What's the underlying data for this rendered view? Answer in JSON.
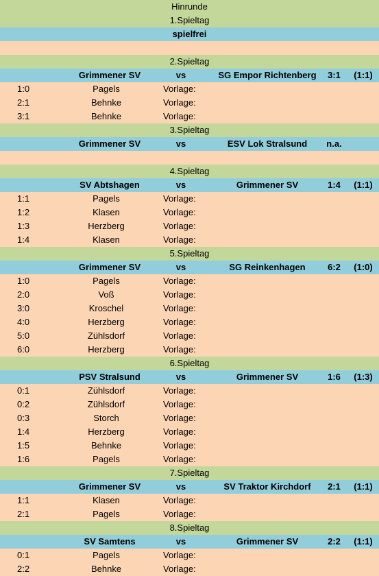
{
  "title": "Hinrunde",
  "rounds": [
    {
      "label": "1.Spieltag",
      "spielfrei": "spielfrei",
      "goals": []
    },
    {
      "label": "2.Spieltag",
      "match": {
        "home": "Grimmener SV",
        "vs": "vs",
        "away": "SG Empor Richtenberg",
        "result": "3:1",
        "half": "(1:1)"
      },
      "goals": [
        {
          "score": "1:0",
          "player": "Pagels",
          "vorlage": "Vorlage:"
        },
        {
          "score": "2:1",
          "player": "Behnke",
          "vorlage": "Vorlage:"
        },
        {
          "score": "3:1",
          "player": "Behnke",
          "vorlage": "Vorlage:"
        }
      ]
    },
    {
      "label": "3.Spieltag",
      "match": {
        "home": "Grimmener SV",
        "vs": "vs",
        "away": "ESV Lok Stralsund",
        "result": "n.a.",
        "half": ""
      },
      "goals": [],
      "empty_row": true
    },
    {
      "label": "4.Spieltag",
      "match": {
        "home": "SV Abtshagen",
        "vs": "vs",
        "away": "Grimmener SV",
        "result": "1:4",
        "half": "(1:1)"
      },
      "goals": [
        {
          "score": "1:1",
          "player": "Pagels",
          "vorlage": "Vorlage:"
        },
        {
          "score": "1:2",
          "player": "Klasen",
          "vorlage": "Vorlage:"
        },
        {
          "score": "1:3",
          "player": "Herzberg",
          "vorlage": "Vorlage:"
        },
        {
          "score": "1:4",
          "player": "Klasen",
          "vorlage": "Vorlage:"
        }
      ]
    },
    {
      "label": "5.Spieltag",
      "match": {
        "home": "Grimmener SV",
        "vs": "vs",
        "away": "SG Reinkenhagen",
        "result": "6:2",
        "half": "(1:0)"
      },
      "goals": [
        {
          "score": "1:0",
          "player": "Pagels",
          "vorlage": "Vorlage:"
        },
        {
          "score": "2:0",
          "player": "Voß",
          "vorlage": "Vorlage:"
        },
        {
          "score": "3:0",
          "player": "Kroschel",
          "vorlage": "Vorlage:"
        },
        {
          "score": "4:0",
          "player": "Herzberg",
          "vorlage": "Vorlage:"
        },
        {
          "score": "5:0",
          "player": "Zühlsdorf",
          "vorlage": "Vorlage:"
        },
        {
          "score": "6:0",
          "player": "Herzberg",
          "vorlage": "Vorlage:"
        }
      ]
    },
    {
      "label": "6.Spieltag",
      "match": {
        "home": "PSV Stralsund",
        "vs": "vs",
        "away": "Grimmener SV",
        "result": "1:6",
        "half": "(1:3)"
      },
      "goals": [
        {
          "score": "0:1",
          "player": "Zühlsdorf",
          "vorlage": "Vorlage:"
        },
        {
          "score": "0:2",
          "player": "Zühlsdorf",
          "vorlage": "Vorlage:"
        },
        {
          "score": "0:3",
          "player": "Storch",
          "vorlage": "Vorlage:"
        },
        {
          "score": "1:4",
          "player": "Herzberg",
          "vorlage": "Vorlage:"
        },
        {
          "score": "1:5",
          "player": "Behnke",
          "vorlage": "Vorlage:"
        },
        {
          "score": "1:6",
          "player": "Pagels",
          "vorlage": "Vorlage:"
        }
      ]
    },
    {
      "label": "7.Spieltag",
      "match": {
        "home": "Grimmener SV",
        "vs": "vs",
        "away": "SV Traktor Kirchdorf",
        "result": "2:1",
        "half": "(1:1)"
      },
      "goals": [
        {
          "score": "1:1",
          "player": "Klasen",
          "vorlage": "Vorlage:"
        },
        {
          "score": "2:1",
          "player": "Pagels",
          "vorlage": "Vorlage:"
        }
      ]
    },
    {
      "label": "8.Spieltag",
      "match": {
        "home": "SV Samtens",
        "vs": "vs",
        "away": "Grimmener SV",
        "result": "2:2",
        "half": "(1:1)"
      },
      "goals": [
        {
          "score": "0:1",
          "player": "Pagels",
          "vorlage": "Vorlage:"
        },
        {
          "score": "2:2",
          "player": "Behnke",
          "vorlage": "Vorlage:"
        }
      ]
    }
  ]
}
